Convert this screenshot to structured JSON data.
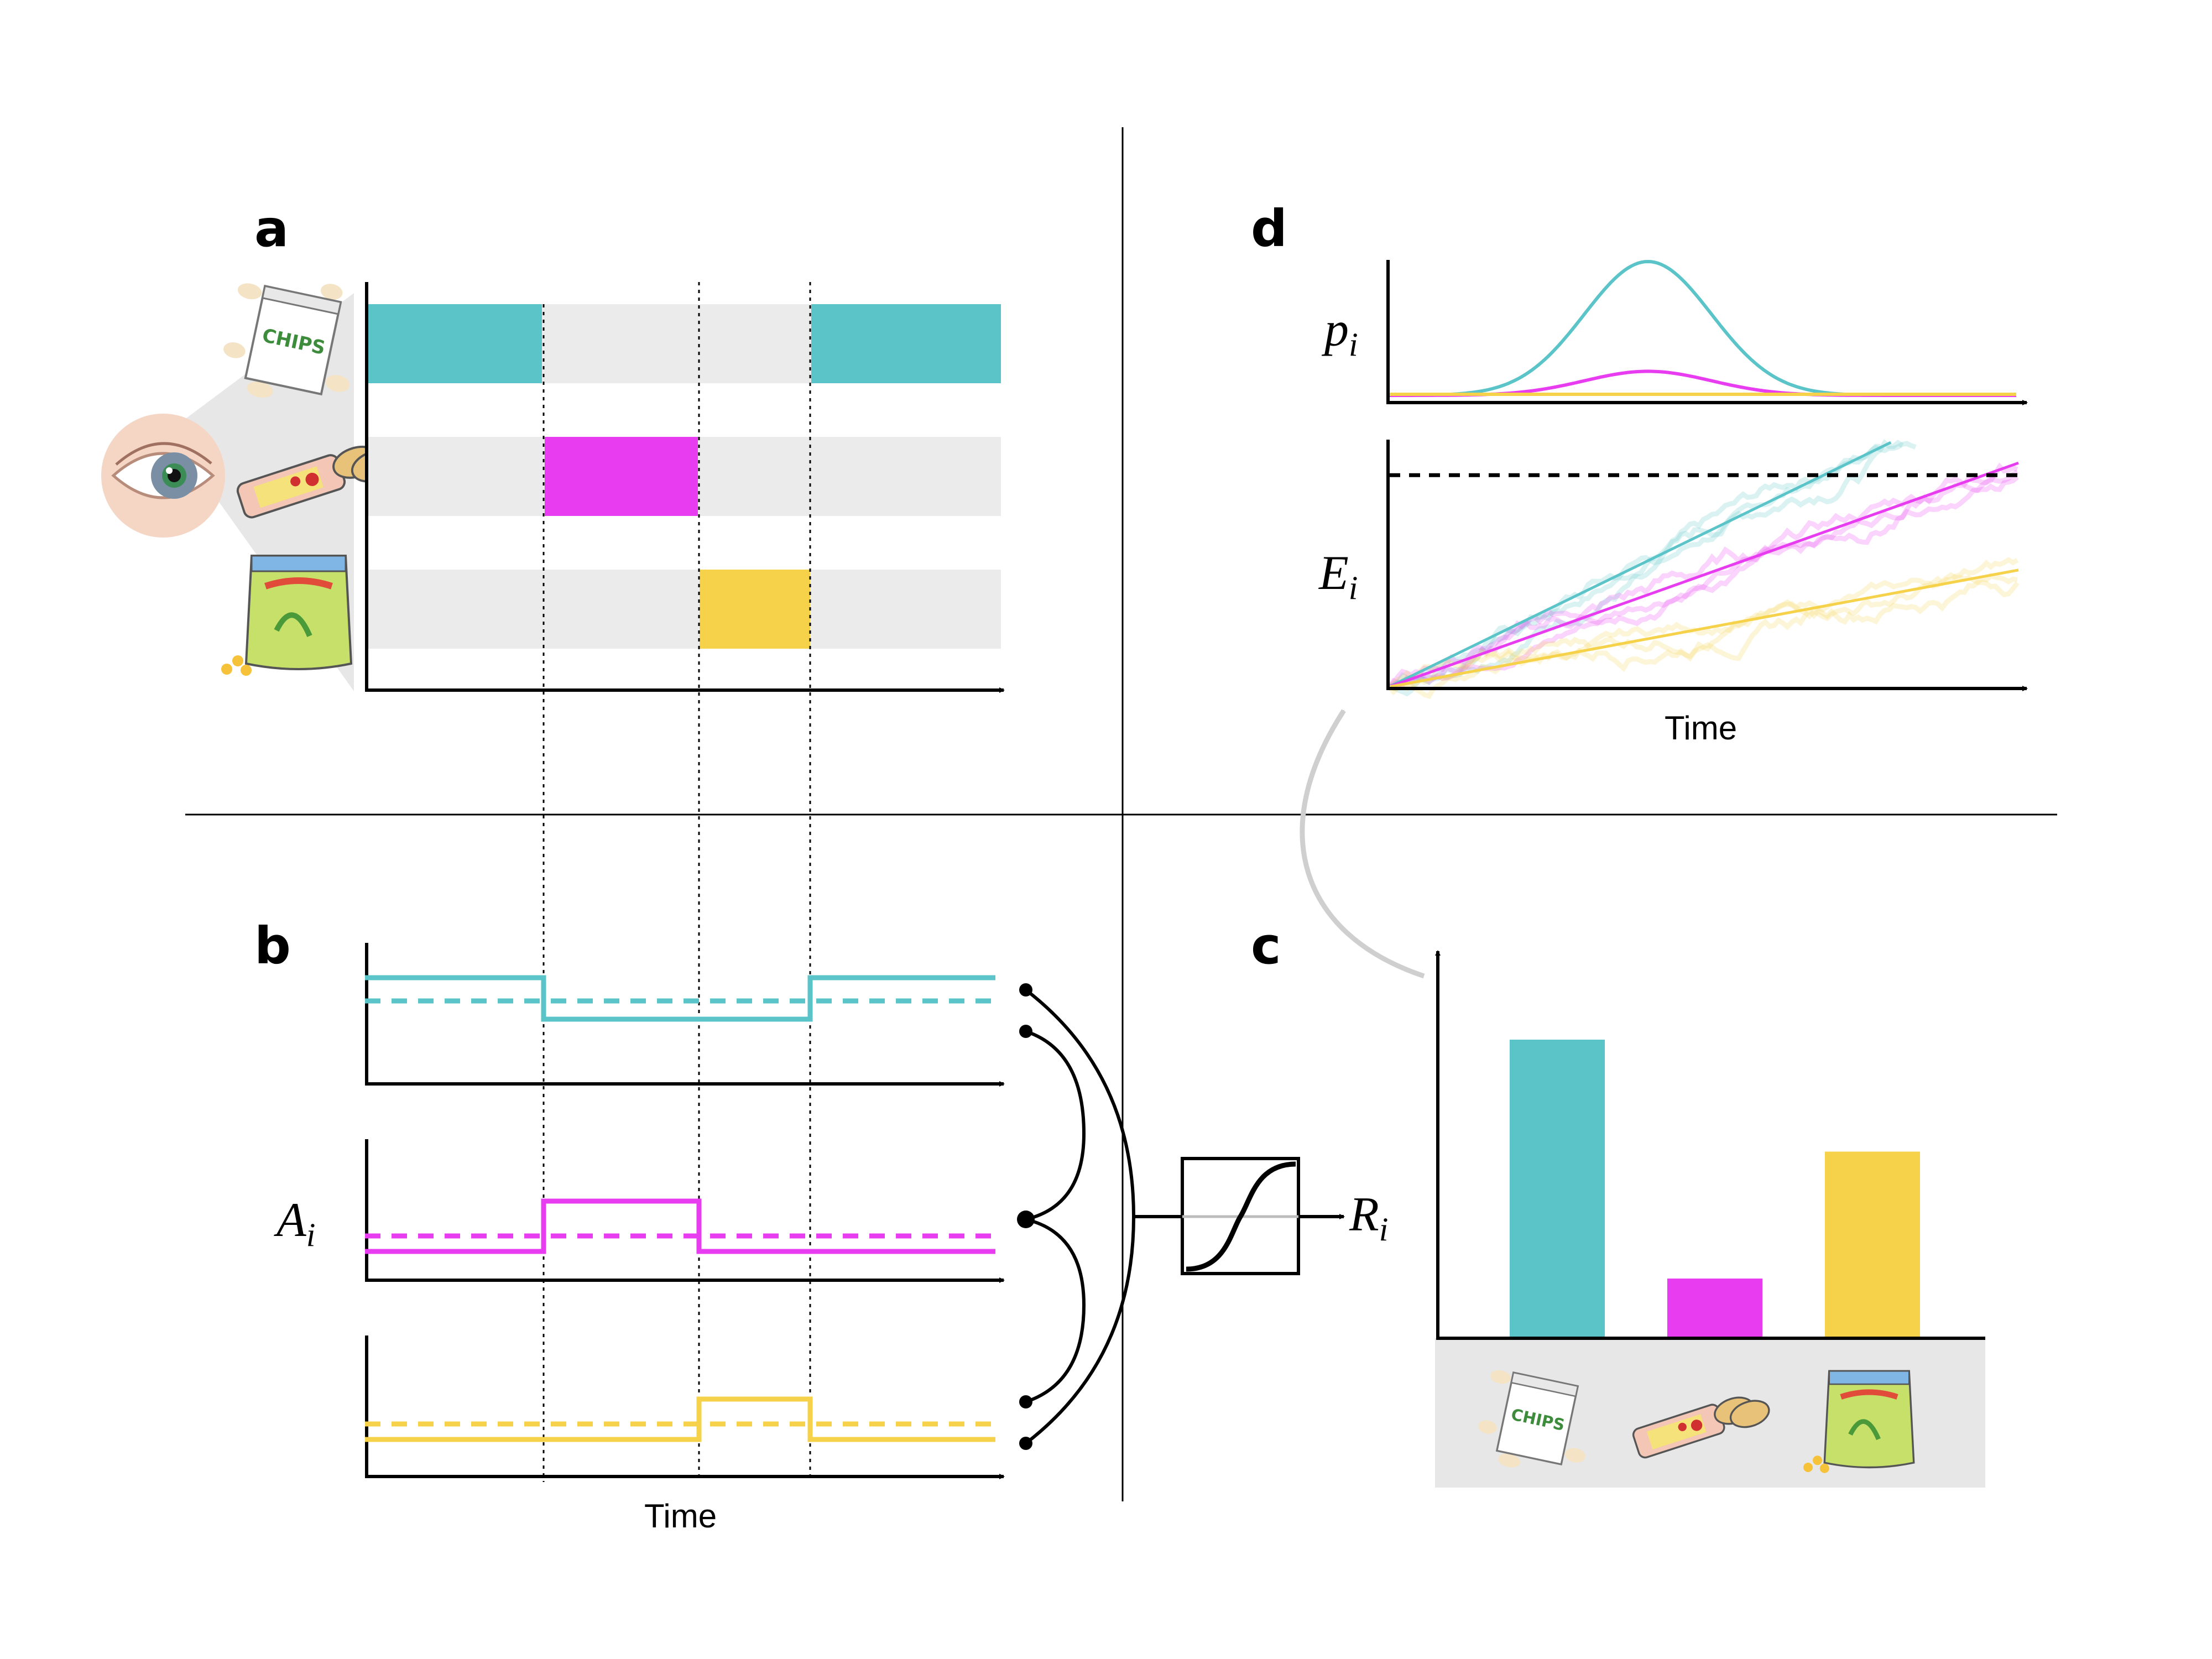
{
  "panels": {
    "a": {
      "label": "a"
    },
    "b": {
      "label": "b",
      "ylabel": "A",
      "ylabel_sub": "i",
      "xlabel": "Time"
    },
    "c": {
      "label": "c",
      "output_label": "R",
      "output_sub": "i"
    },
    "d": {
      "label": "d",
      "p_label": "p",
      "p_sub": "i",
      "e_label": "E",
      "e_sub": "i",
      "xlabel": "Time"
    }
  },
  "colors": {
    "chips": "#5bc4c8",
    "bar": "#e83cf0",
    "puffs": "#f6d24a",
    "background_band": "#ebebeb",
    "eye_halo": "#f5d6c4"
  },
  "items": [
    {
      "name": "chips",
      "package_text": "CHIPS",
      "icon": "chips-bag-icon"
    },
    {
      "name": "cereal-bar",
      "icon": "cereal-bar-icon"
    },
    {
      "name": "puffs",
      "icon": "puffs-bag-icon"
    }
  ],
  "chart_data": [
    {
      "type": "bar",
      "panel": "c",
      "categories": [
        "chips",
        "cereal-bar",
        "puffs"
      ],
      "values": [
        0.8,
        0.16,
        0.5
      ],
      "ylim": [
        0,
        1
      ],
      "colors": [
        "#5bc4c8",
        "#e83cf0",
        "#f6d24a"
      ]
    },
    {
      "type": "line",
      "panel": "d-top",
      "series": [
        {
          "color": "#5bc4c8",
          "peak": 1.0
        },
        {
          "color": "#e83cf0",
          "peak": 0.18
        },
        {
          "color": "#f6d24a",
          "peak": 0.0
        }
      ]
    },
    {
      "type": "line",
      "panel": "d-bottom",
      "threshold": 0.87,
      "series": [
        {
          "color": "#5bc4c8",
          "slope": 1.26
        },
        {
          "color": "#e83cf0",
          "slope": 0.92
        },
        {
          "color": "#f6d24a",
          "slope": 0.48
        }
      ]
    }
  ]
}
